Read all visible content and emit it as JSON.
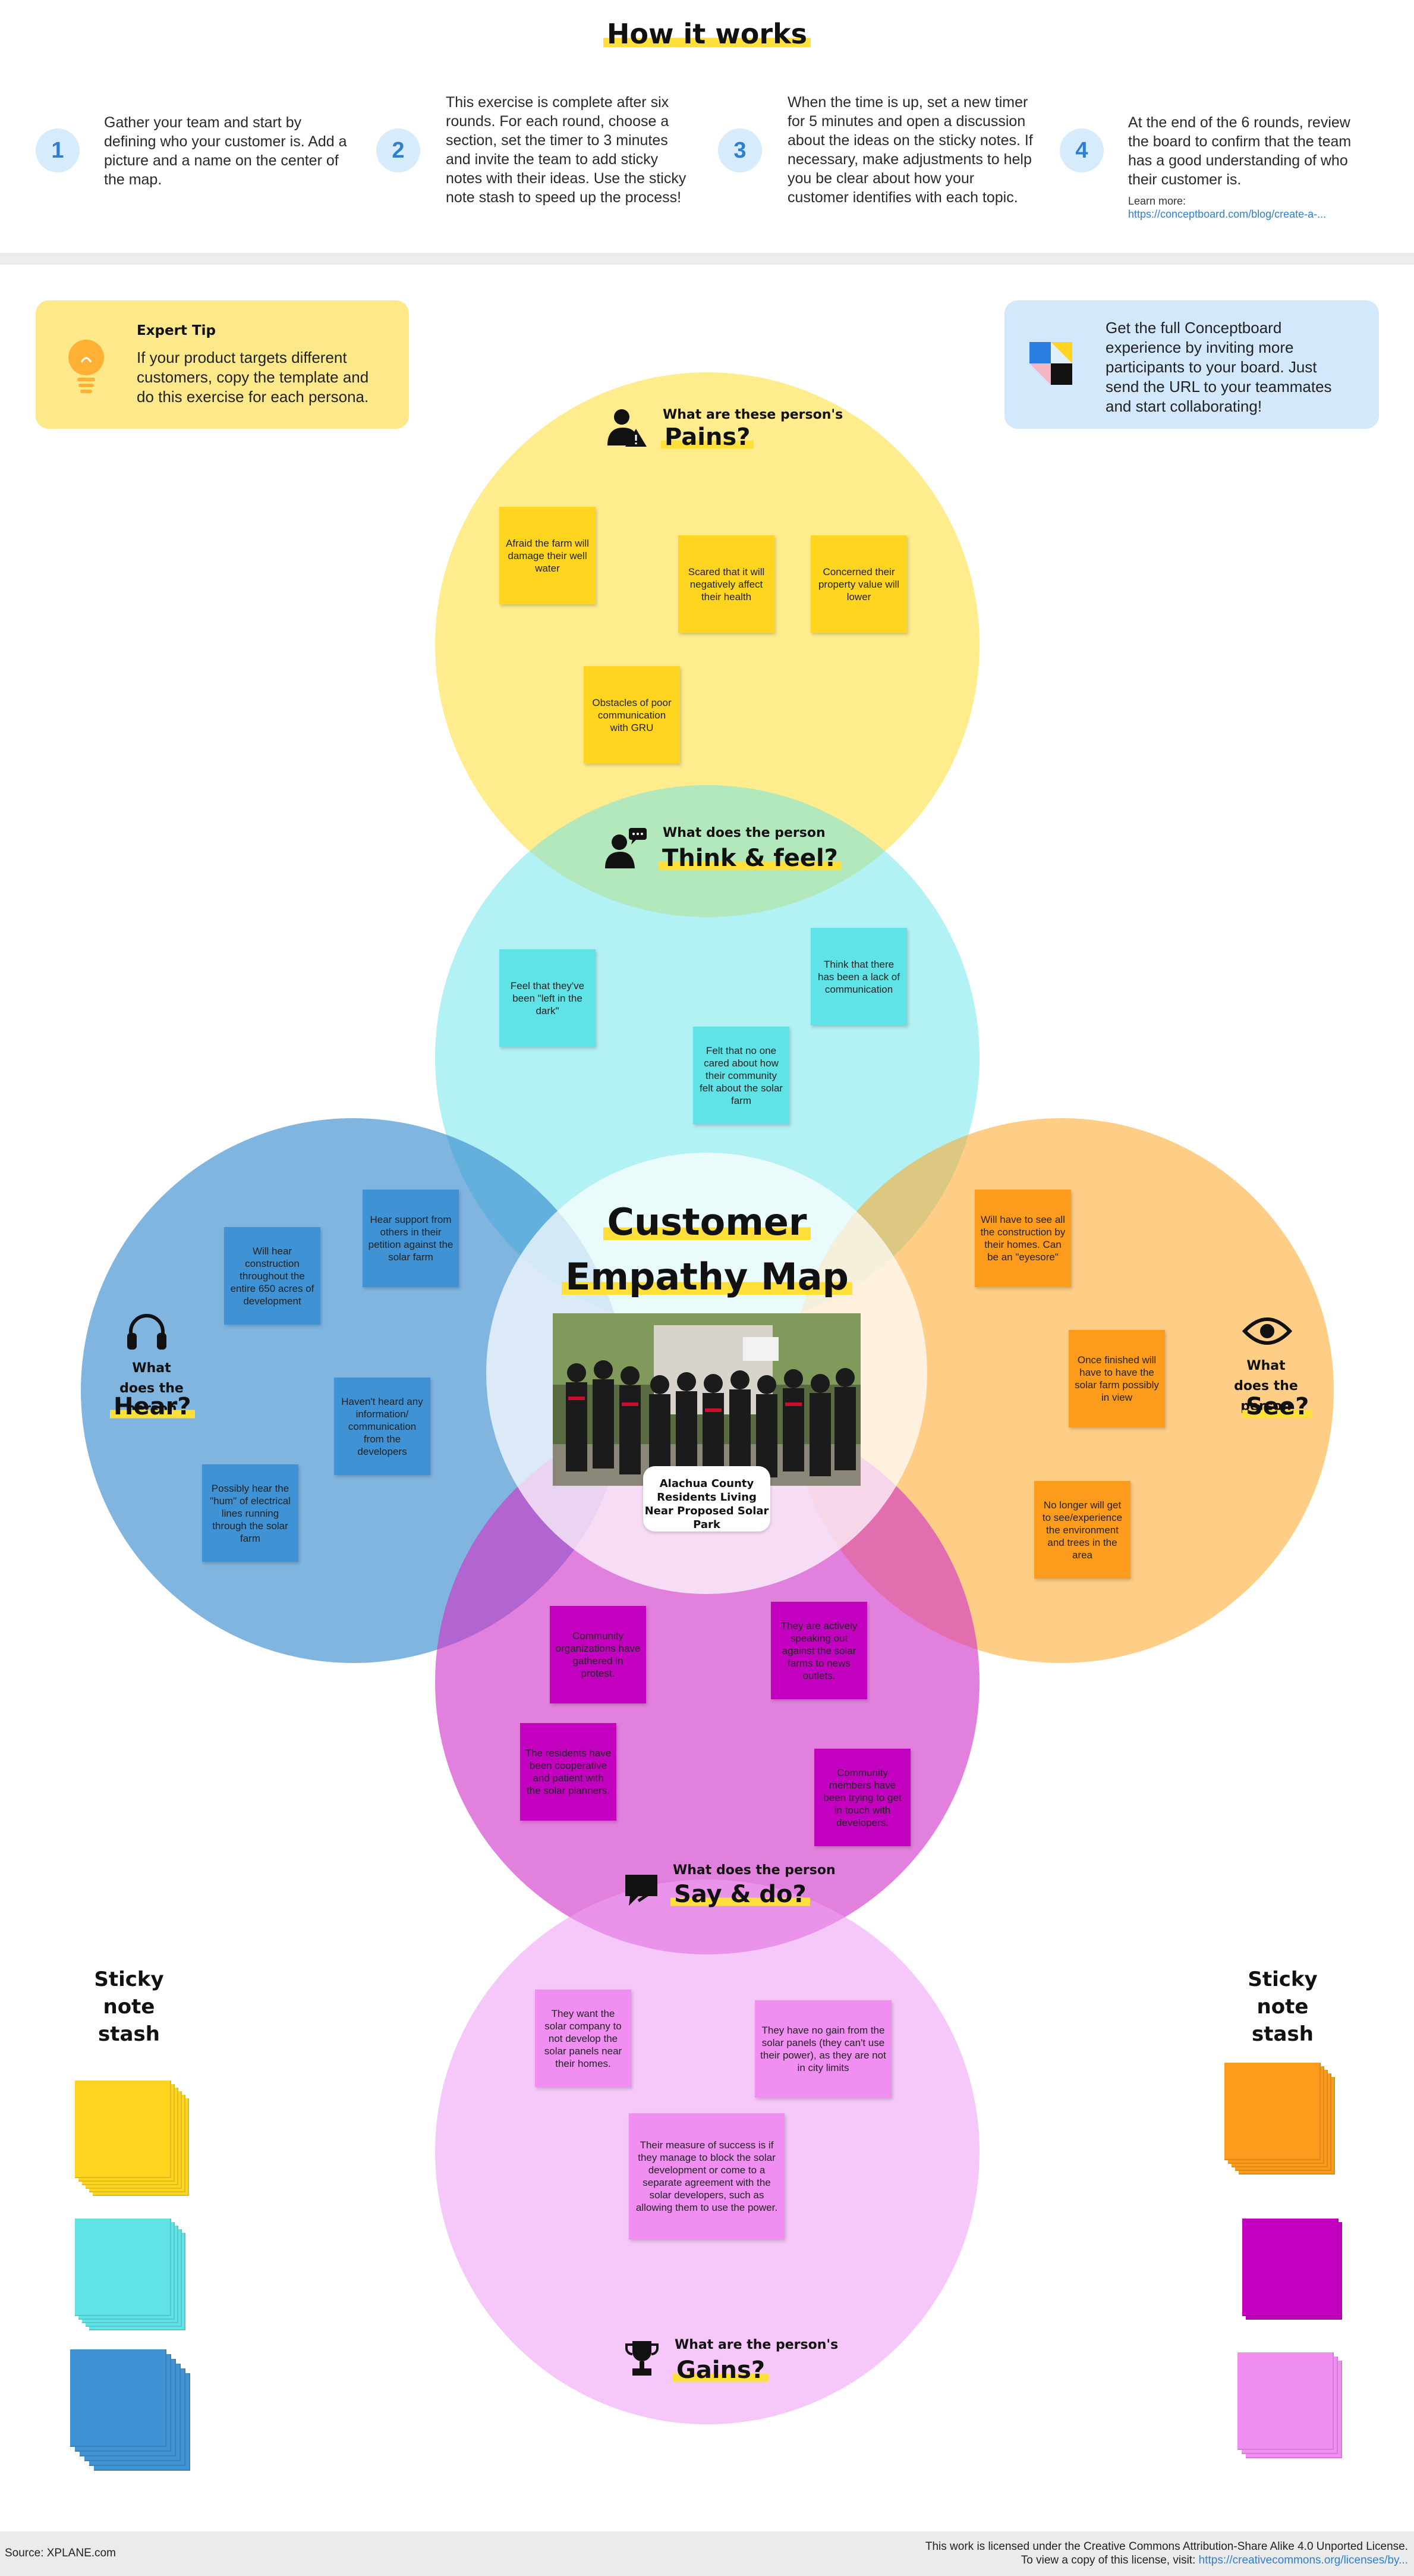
{
  "header": {
    "title": "How it works",
    "steps": [
      {
        "number": "1",
        "text": "Gather your team and start by defining who your customer is. Add a picture and a name on the center of the map."
      },
      {
        "number": "2",
        "text": "This exercise is complete after six rounds. For each round, choose a section, set the timer to 3 minutes and invite the team to add sticky notes with their ideas. Use the sticky note stash to speed up the process!"
      },
      {
        "number": "3",
        "text": "When the time is up, set a new timer for 5 minutes and open a discussion about the ideas on the sticky notes. If necessary, make adjustments to help you be clear about how your customer identifies with each topic."
      },
      {
        "number": "4",
        "text": "At the end of the 6 rounds, review the board to confirm that the team has a good understanding of who their customer is."
      }
    ],
    "learn_more_label": "Learn more:",
    "learn_more_link": "https://conceptboard.com/blog/create-a-..."
  },
  "tips": {
    "expert_title": "Expert Tip",
    "expert_text": "If your product targets different customers, copy the template and do this exercise for each persona.",
    "conceptboard_text": "Get the full Conceptboard experience by inviting more participants to your board. Just send the URL to your teammates and start collaborating!"
  },
  "map": {
    "title_line1": "Customer",
    "title_line2": "Empathy Map",
    "persona_name": "Alachua County Residents Living Near Proposed Solar Park"
  },
  "sections": {
    "pains": {
      "question": "What are these person's",
      "heading": "Pains?",
      "notes": [
        "Afraid the farm will damage their well water",
        "Scared that it will negatively affect their health",
        "Concerned their property value will lower",
        "Obstacles of poor communication with GRU"
      ]
    },
    "think": {
      "question": "What does the person",
      "heading": "Think & feel?",
      "notes": [
        "Feel that they've been \"left in the dark\"",
        "Think that there has been a lack of communication",
        "Felt that no one cared about how their community felt about the solar farm"
      ]
    },
    "hear": {
      "question": "What does the person",
      "heading": "Hear?",
      "notes": [
        "Hear support from others in their petition against the solar farm",
        "Will hear construction throughout the entire 650 acres of development",
        "Haven't heard any information/ communication from the developers",
        "Possibly hear the \"hum\" of electrical lines running through the solar farm"
      ]
    },
    "see": {
      "question": "What does the person",
      "heading": "See?",
      "notes": [
        "Will have to see all the construction by their homes. Can be an \"eyesore\"",
        "Once finished will have to have the solar farm possibly in view",
        "No longer will get to see/experience the environment and trees in the area"
      ]
    },
    "say": {
      "question": "What does the person",
      "heading": "Say & do?",
      "notes": [
        "Community organizations have gathered in protest.",
        "They are actively speaking out against the solar farms to news outlets.",
        "The residents have been cooperative and patient with the solar planners.",
        "Community members have been trying to get in touch with developers."
      ]
    },
    "gains": {
      "question": "What are the person's",
      "heading": "Gains?",
      "notes": [
        "They want the solar company to not develop the solar panels near their homes.",
        "They have no gain from the solar panels (they can't use their power), as they are not in city limits",
        "Their measure of success is if they manage to block the solar development or come to a separate agreement with the solar developers, such as allowing them to use the power."
      ]
    }
  },
  "stash": {
    "label_left": "Sticky note stash",
    "label_right": "Sticky note stash"
  },
  "colors": {
    "yellow": "#ffd520",
    "cyan": "#5fe3e6",
    "blue": "#3f92d4",
    "orange": "#fd9c1c",
    "magenta": "#c300c0",
    "pink": "#f08ef2",
    "accent": "#2f7fd0"
  },
  "footer": {
    "source": "Source: XPLANE.com",
    "license_line1": "This work is licensed under the Creative Commons Attribution-Share Alike 4.0 Unported License.",
    "license_line2_prefix": "To view a copy of this license, visit: ",
    "license_link": "https://creativecommons.org/licenses/by..."
  },
  "icons": [
    "lightbulb-icon",
    "conceptboard-logo-icon",
    "pain-person-icon",
    "think-person-icon",
    "headphones-icon",
    "eye-icon",
    "speech-bubble-icon",
    "trophy-icon"
  ]
}
